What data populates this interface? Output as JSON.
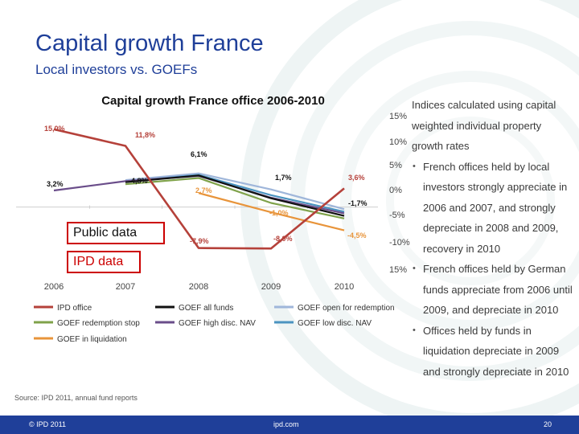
{
  "slide": {
    "title": "Capital growth France",
    "subtitle": "Local investors vs. GOEFs",
    "source": "Source: IPD 2011, annual fund reports",
    "footer_left": "© IPD 2011",
    "footer_center": "ipd.com",
    "footer_right": "20"
  },
  "boxes": {
    "public": "Public data",
    "ipd": "IPD data"
  },
  "notes": {
    "intro": "Indices calculated using capital weighted individual property growth rates",
    "bullets": [
      "French offices held by local investors strongly appreciate in 2006 and 2007, and strongly depreciate in 2008 and 2009, recovery in 2010",
      "French offices held by German funds appreciate from 2006 until 2009, and depreciate in 2010",
      "Offices held by funds in liquidation depreciate in 2009 and strongly depreciate in 2010"
    ]
  },
  "chart_data": {
    "type": "line",
    "title": "Capital growth France office 2006-2010",
    "xlabel": "",
    "ylabel": "",
    "categories": [
      "2006",
      "2007",
      "2008",
      "2009",
      "2010"
    ],
    "y_ticks": [
      "15%",
      "10%",
      "5%",
      "0%",
      "-5%",
      "-10%",
      "15%"
    ],
    "ylim": [
      -12,
      17
    ],
    "series": [
      {
        "name": "IPD office",
        "color": "#b5413a",
        "values": [
          15.0,
          11.8,
          -7.9,
          -8.0,
          3.6
        ]
      },
      {
        "name": "GOEF all funds",
        "color": "#111111",
        "values": [
          null,
          4.8,
          6.1,
          1.7,
          -1.7
        ]
      },
      {
        "name": "GOEF open for redemption",
        "color": "#9fb6da",
        "values": [
          null,
          5.2,
          6.5,
          3.4,
          -0.4
        ]
      },
      {
        "name": "GOEF redemption stop",
        "color": "#7fa24a",
        "values": [
          null,
          4.4,
          5.6,
          0.8,
          -2.2
        ]
      },
      {
        "name": "GOEF high disc. NAV",
        "color": "#6a4d8a",
        "values": [
          3.2,
          5.0,
          6.0,
          1.8,
          -1.2
        ]
      },
      {
        "name": "GOEF low disc. NAV",
        "color": "#4b93c0",
        "values": [
          null,
          4.9,
          6.2,
          2.3,
          -0.9
        ]
      },
      {
        "name": "GOEF in liquidation",
        "color": "#e8943a",
        "values": [
          null,
          null,
          2.7,
          -1.0,
          -4.5
        ]
      }
    ],
    "labels": [
      {
        "text": "15,0%",
        "color": "#b5413a"
      },
      {
        "text": "11,8%",
        "color": "#b5413a"
      },
      {
        "text": "6,1%",
        "color": "#111111"
      },
      {
        "text": "3,2%",
        "color": "#111111"
      },
      {
        "text": "4,8%",
        "color": "#111111"
      },
      {
        "text": "1,7%",
        "color": "#111111"
      },
      {
        "text": "3,6%",
        "color": "#b5413a"
      },
      {
        "text": "2,7%",
        "color": "#e8943a"
      },
      {
        "text": "-1,7%",
        "color": "#111111"
      },
      {
        "text": "-1,0%",
        "color": "#e8943a"
      },
      {
        "text": "-7,9%",
        "color": "#b5413a"
      },
      {
        "text": "-8,0%",
        "color": "#b5413a"
      },
      {
        "text": "-4,5%",
        "color": "#e8943a"
      }
    ]
  }
}
